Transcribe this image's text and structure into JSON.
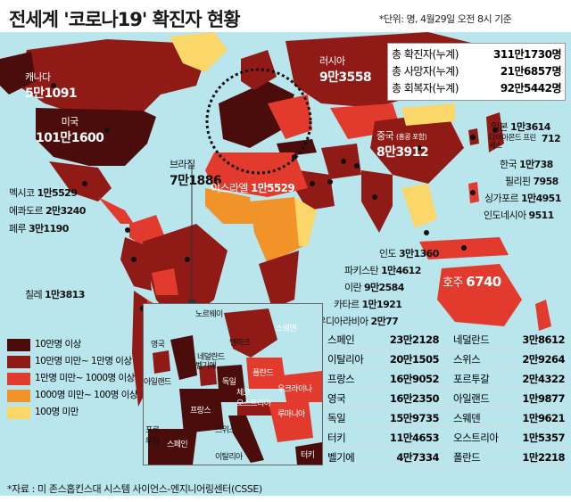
{
  "title": "전세계 '코로나19' 확진자 현황",
  "unit_note": "*단위: 명, 4월29일 오전 8시 기준",
  "colors": {
    "ocean": "#b9e5ec",
    "level1": "#4a0d0b",
    "level2": "#8f1a16",
    "level3": "#e23b2e",
    "level4": "#f2932a",
    "level5": "#fbd76a"
  },
  "totals": [
    {
      "label": "총 확진자(누계)",
      "value": "311만1730명"
    },
    {
      "label": "총 사망자(누계)",
      "value": "21만6857명"
    },
    {
      "label": "총 회복자(누계)",
      "value": "92만5442명"
    }
  ],
  "countries": {
    "canada": {
      "name": "캐나다",
      "value": "5만1091"
    },
    "usa": {
      "name": "미국",
      "value": "101만1600"
    },
    "mexico": {
      "name": "멕시코",
      "value": "1만5529"
    },
    "ecuador": {
      "name": "에콰도르",
      "value": "2만3240"
    },
    "peru": {
      "name": "페루",
      "value": "3만1190"
    },
    "brazil": {
      "name": "브라질",
      "value": "7만1886"
    },
    "chile": {
      "name": "칠레",
      "value": "1만3813"
    },
    "russia": {
      "name": "러시아",
      "value": "9만3558"
    },
    "china": {
      "name": "중국",
      "note": "(홍콩 포함)",
      "value": "8만3912"
    },
    "japan": {
      "name": "일본",
      "value": "1만3614"
    },
    "diamond_princess": {
      "name": "다이아몬드 프린세스",
      "value": "712"
    },
    "korea": {
      "name": "한국",
      "value": "1만738"
    },
    "philippines": {
      "name": "필리핀",
      "value": "7958"
    },
    "singapore": {
      "name": "싱가포르",
      "value": "1만4951"
    },
    "indonesia": {
      "name": "인도네시아",
      "value": "9511"
    },
    "israel": {
      "name": "이스라엘",
      "value": "1만5529"
    },
    "india": {
      "name": "인도",
      "value": "3만1360"
    },
    "pakistan": {
      "name": "파키스탄",
      "value": "1만4612"
    },
    "iran": {
      "name": "이란",
      "value": "9만2584"
    },
    "qatar": {
      "name": "카타르",
      "value": "1만1921"
    },
    "saudi": {
      "name": "사우디아라비아",
      "value": "2만77"
    },
    "australia": {
      "name": "호주",
      "value": "6740"
    }
  },
  "inset_labels": {
    "norway": "노르웨이",
    "sweden": "스웨덴",
    "denmark": "덴마크",
    "uk": "영국",
    "netherlands": "네덜란드",
    "belgium": "벨기에",
    "ireland": "아일랜드",
    "poland": "폴란드",
    "germany": "독일",
    "czech": "체코",
    "ukraine": "우크라이나",
    "austria": "오스트리아",
    "romania": "루마니아",
    "france": "프랑스",
    "switzerland": "스위스",
    "portugal": "포르투갈",
    "spain": "스페인",
    "italy": "이탈리아",
    "turkey": "터키"
  },
  "legend": [
    {
      "label": "10만명 이상",
      "color": "#4a0d0b"
    },
    {
      "label": "10만명 미만~ 1만명 이상",
      "color": "#8f1a16"
    },
    {
      "label": "1만명 미만~ 1000명 이상",
      "color": "#e23b2e"
    },
    {
      "label": "1000명 미만~ 100명 이상",
      "color": "#f2932a"
    },
    {
      "label": "100명 미만",
      "color": "#fbd76a"
    }
  ],
  "europe_table": [
    {
      "left": {
        "name": "스페인",
        "value": "23만2128"
      },
      "right": {
        "name": "네덜란드",
        "value": "3만8612"
      }
    },
    {
      "left": {
        "name": "이탈리아",
        "value": "20만1505"
      },
      "right": {
        "name": "스위스",
        "value": "2만9264"
      }
    },
    {
      "left": {
        "name": "프랑스",
        "value": "16만9052"
      },
      "right": {
        "name": "포르투갈",
        "value": "2만4322"
      }
    },
    {
      "left": {
        "name": "영국",
        "value": "16만2350"
      },
      "right": {
        "name": "아일랜드",
        "value": "1만9877"
      }
    },
    {
      "left": {
        "name": "독일",
        "value": "15만9735"
      },
      "right": {
        "name": "스웨덴",
        "value": "1만9621"
      }
    },
    {
      "left": {
        "name": "터키",
        "value": "11만4653"
      },
      "right": {
        "name": "오스트리아",
        "value": "1만5357"
      }
    },
    {
      "left": {
        "name": "벨기에",
        "value": "4만7334"
      },
      "right": {
        "name": "폴란드",
        "value": "1만2218"
      }
    }
  ],
  "source": "*자료 : 미 존스홉킨스대 시스템 사이언스-엔지니어링센터(CSSE)"
}
